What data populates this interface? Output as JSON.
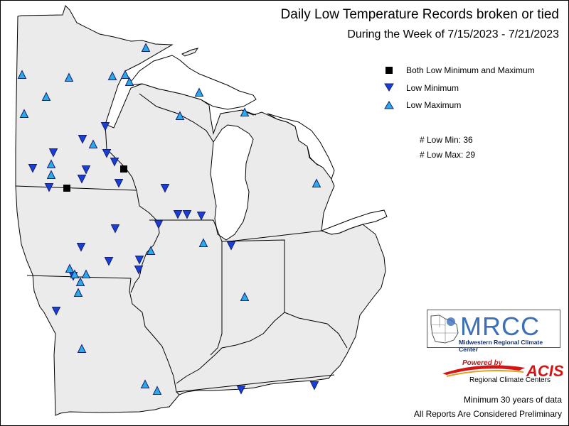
{
  "title": "Daily Low Temperature Records broken or tied",
  "subtitle": "During the Week of 7/15/2023 - 7/21/2023",
  "legend": [
    {
      "symbol": "square",
      "label": "Both Low Minimum and Maximum",
      "color": "#000000"
    },
    {
      "symbol": "triangle-down",
      "label": "Low Minimum",
      "color": "#1a3fd6"
    },
    {
      "symbol": "triangle-up",
      "label": "Low Maximum",
      "color": "#2aaae8"
    }
  ],
  "counts": {
    "low_min": "# Low Min: 36",
    "low_max": "# Low Max: 29"
  },
  "logo": {
    "name": "MRCC",
    "subtitle": "Midwestern Regional Climate Center"
  },
  "acis": {
    "powered_by": "Powered by",
    "name": "ACIS",
    "subtitle": "Regional Climate Centers"
  },
  "footer": {
    "line1": "Minimum 30 years of data",
    "line2": "All Reports Are Considered Preliminary"
  },
  "colors": {
    "land": "#ebebeb",
    "border": "#000000",
    "low_min": "#1a3fd6",
    "low_max": "#2aaae8",
    "both": "#000000"
  }
}
